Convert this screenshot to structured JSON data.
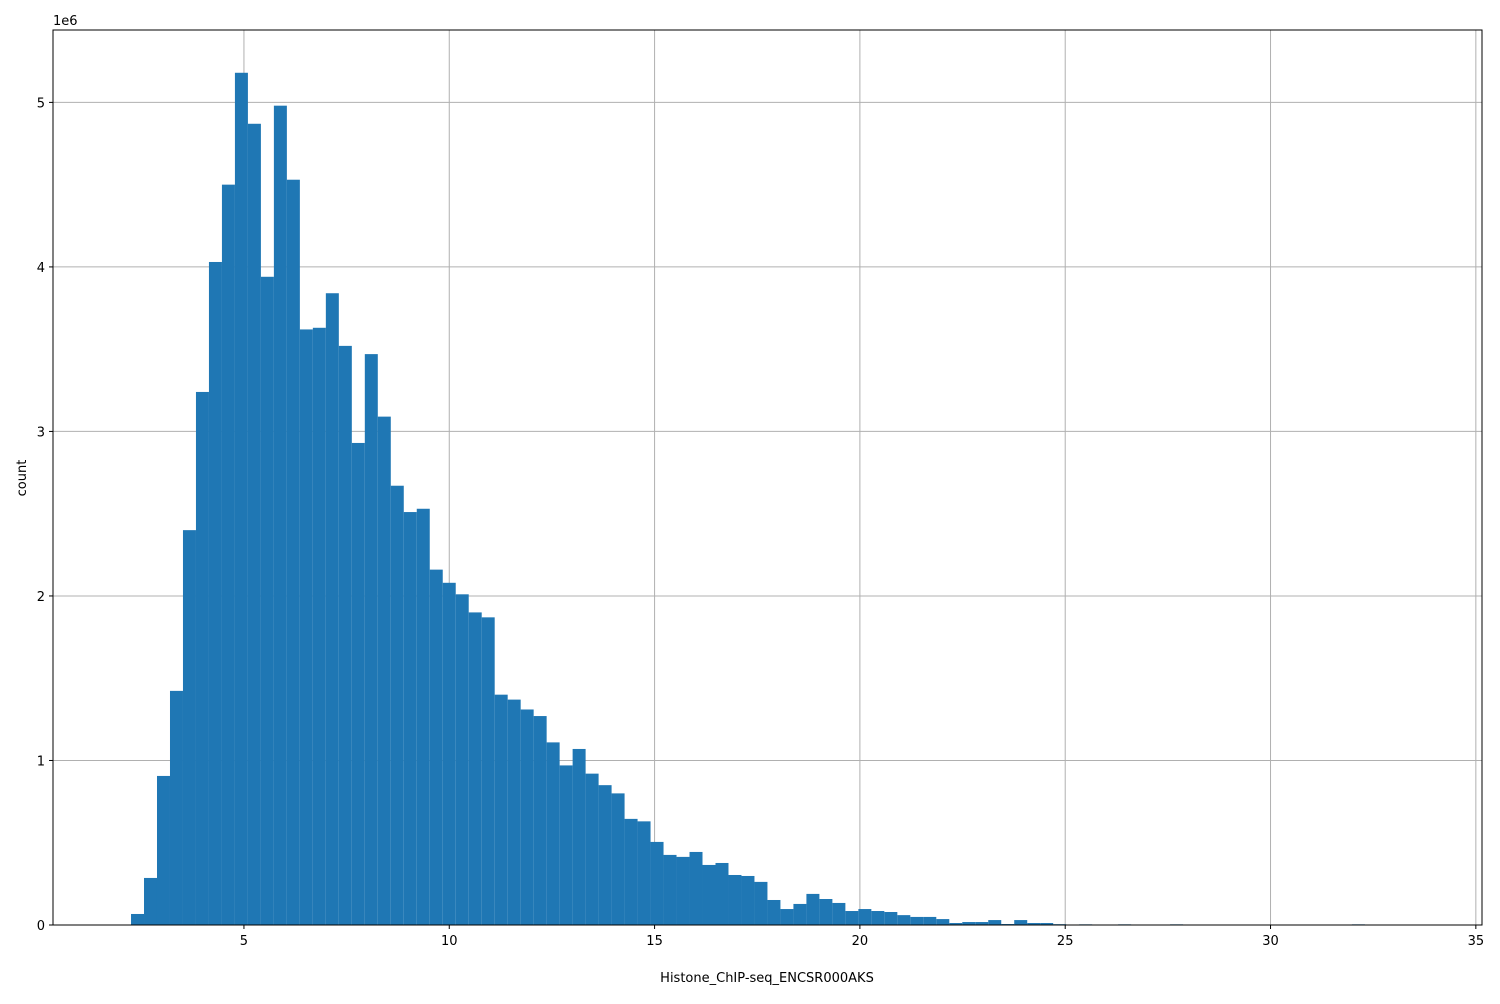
{
  "chart_data": {
    "type": "bar",
    "subtype": "histogram",
    "xlabel": "Histone_ChIP-seq_ENCSR000AKS",
    "ylabel": "count",
    "y_offset_label": "1e6",
    "xlim": [
      0.35,
      35.15
    ],
    "ylim": [
      0,
      5440000
    ],
    "xticks": [
      5,
      10,
      15,
      20,
      25,
      30,
      35
    ],
    "yticks": [
      0,
      1,
      2,
      3,
      4,
      5
    ],
    "grid": true,
    "bar_color": "#1f77b4",
    "bin_start": 2.25,
    "bin_width": 0.3163,
    "values": [
      67000,
      286000,
      906000,
      1423000,
      2400000,
      3240000,
      4030000,
      4500000,
      5180000,
      4870000,
      3940000,
      4980000,
      4530000,
      3620000,
      3630000,
      3840000,
      3520000,
      2930000,
      3470000,
      3090000,
      2670000,
      2510000,
      2530000,
      2160000,
      2080000,
      2010000,
      1900000,
      1870000,
      1400000,
      1370000,
      1310000,
      1270000,
      1110000,
      970000,
      1070000,
      920000,
      850000,
      800000,
      645000,
      630000,
      505000,
      426000,
      414000,
      444000,
      365000,
      377000,
      304000,
      298000,
      262000,
      152000,
      97000,
      128000,
      189000,
      158000,
      134000,
      85000,
      97000,
      85000,
      79000,
      60000,
      49000,
      49000,
      36000,
      12000,
      18000,
      18000,
      30000,
      6000,
      30000,
      12000,
      12000,
      5000,
      1000,
      4000,
      0,
      0,
      4000,
      0,
      0,
      0,
      4000,
      0,
      0,
      0,
      0,
      0,
      0,
      0,
      0,
      0,
      0,
      0,
      0,
      0,
      4000,
      0,
      0,
      0,
      0,
      0
    ]
  }
}
